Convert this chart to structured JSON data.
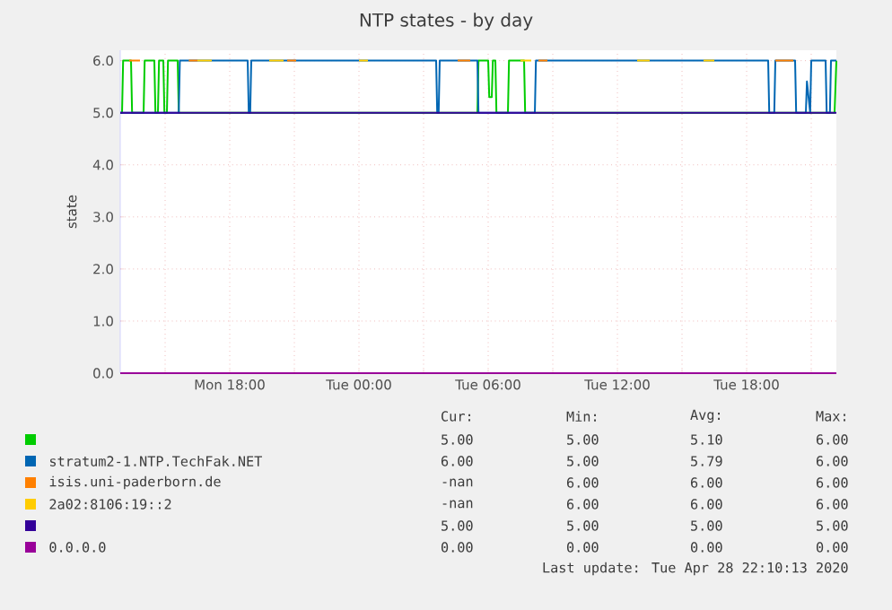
{
  "chart_data": {
    "type": "line",
    "title": "NTP states - by day",
    "ylabel": "state",
    "xlim": [
      "2020-04-27T12:55",
      "2020-04-28T22:10"
    ],
    "ylim": [
      0,
      6.2
    ],
    "xticks": [
      {
        "value": "2020-04-27T15:00",
        "label": null
      },
      {
        "value": "2020-04-27T18:00",
        "label": "Mon 18:00"
      },
      {
        "value": "2020-04-27T21:00",
        "label": null
      },
      {
        "value": "2020-04-28T00:00",
        "label": "Tue 00:00"
      },
      {
        "value": "2020-04-28T03:00",
        "label": null
      },
      {
        "value": "2020-04-28T06:00",
        "label": "Tue 06:00"
      },
      {
        "value": "2020-04-28T09:00",
        "label": null
      },
      {
        "value": "2020-04-28T12:00",
        "label": "Tue 12:00"
      },
      {
        "value": "2020-04-28T15:00",
        "label": null
      },
      {
        "value": "2020-04-28T18:00",
        "label": "Tue 18:00"
      },
      {
        "value": "2020-04-28T21:00",
        "label": null
      }
    ],
    "yticks": [
      {
        "value": 0,
        "label": "0.0"
      },
      {
        "value": 1,
        "label": "1.0"
      },
      {
        "value": 2,
        "label": "2.0"
      },
      {
        "value": 3,
        "label": "3.0"
      },
      {
        "value": 4,
        "label": "4.0"
      },
      {
        "value": 5,
        "label": "5.0"
      },
      {
        "value": 6,
        "label": "6.0"
      }
    ],
    "grid": true,
    "legend": "bottom",
    "series": [
      {
        "color": "#00cc00",
        "x": [
          "2020-04-27T12:55",
          "2020-04-27T13:00",
          "2020-04-27T13:03",
          "2020-04-27T13:25",
          "2020-04-27T13:28",
          "2020-04-27T14:00",
          "2020-04-27T14:03",
          "2020-04-27T14:30",
          "2020-04-27T14:33",
          "2020-04-27T14:40",
          "2020-04-27T14:43",
          "2020-04-27T14:55",
          "2020-04-27T14:58",
          "2020-04-27T15:05",
          "2020-04-27T15:08",
          "2020-04-27T15:35",
          "2020-04-27T15:38",
          "2020-04-28T05:30",
          "2020-04-28T05:33",
          "2020-04-28T06:00",
          "2020-04-28T06:03",
          "2020-04-28T06:10",
          "2020-04-28T06:13",
          "2020-04-28T06:20",
          "2020-04-28T06:23",
          "2020-04-28T06:55",
          "2020-04-28T06:58",
          "2020-04-28T07:40",
          "2020-04-28T07:43",
          "2020-04-28T22:05",
          "2020-04-28T22:10"
        ],
        "values": [
          5,
          5,
          6,
          6,
          5,
          5,
          6,
          6,
          5,
          5,
          6,
          6,
          5,
          5,
          6,
          6,
          5,
          5,
          6,
          6,
          5.3,
          5.3,
          6,
          6,
          5,
          5,
          6,
          6,
          5,
          5,
          6
        ]
      },
      {
        "name": "stratum2-1.NTP.TechFak.NET",
        "color": "#0066b3",
        "x": [
          "2020-04-27T12:55",
          "2020-04-27T15:38",
          "2020-04-27T15:41",
          "2020-04-27T18:50",
          "2020-04-27T18:53",
          "2020-04-27T18:57",
          "2020-04-27T19:00",
          "2020-04-28T03:35",
          "2020-04-28T03:38",
          "2020-04-28T03:42",
          "2020-04-28T03:45",
          "2020-04-28T05:30",
          "2020-04-28T05:33",
          "2020-04-28T08:10",
          "2020-04-28T08:13",
          "2020-04-28T19:00",
          "2020-04-28T19:03",
          "2020-04-28T19:17",
          "2020-04-28T19:20",
          "2020-04-28T20:15",
          "2020-04-28T20:18",
          "2020-04-28T20:45",
          "2020-04-28T20:48",
          "2020-04-28T20:57",
          "2020-04-28T21:00",
          "2020-04-28T21:40",
          "2020-04-28T21:43",
          "2020-04-28T21:52",
          "2020-04-28T21:55",
          "2020-04-28T22:10"
        ],
        "values": [
          5,
          5,
          6,
          6,
          5,
          5,
          6,
          6,
          5,
          5,
          6,
          6,
          5,
          5,
          6,
          6,
          5,
          5,
          6,
          6,
          5,
          5,
          5.6,
          5,
          6,
          6,
          5,
          5,
          6,
          6
        ]
      },
      {
        "name": "isis.uni-paderborn.de",
        "color": "#ff8000",
        "x": [
          "2020-04-27T13:20",
          "2020-04-27T13:50",
          "2020-04-27T14:00",
          "2020-04-27T16:06",
          "2020-04-27T16:30",
          "2020-04-27T16:36",
          "2020-04-27T20:40",
          "2020-04-27T21:05",
          "2020-04-27T21:12",
          "2020-04-28T04:35",
          "2020-04-28T05:10",
          "2020-04-28T05:18",
          "2020-04-28T08:20",
          "2020-04-28T08:45",
          "2020-04-28T08:54",
          "2020-04-28T19:20",
          "2020-04-28T20:10"
        ],
        "values": [
          6,
          6,
          null,
          6,
          6,
          null,
          6,
          6,
          null,
          6,
          6,
          null,
          6,
          6,
          null,
          6,
          6
        ]
      },
      {
        "name": "2a02:8106:19::2",
        "color": "#ffcc00",
        "x": [
          "2020-04-27T16:30",
          "2020-04-27T17:10",
          "2020-04-27T17:18",
          "2020-04-27T19:50",
          "2020-04-27T20:30",
          "2020-04-27T20:36",
          "2020-04-28T00:00",
          "2020-04-28T00:25",
          "2020-04-28T00:30",
          "2020-04-28T07:30",
          "2020-04-28T08:00",
          "2020-04-28T08:06",
          "2020-04-28T12:55",
          "2020-04-28T13:30",
          "2020-04-28T13:36",
          "2020-04-28T16:00",
          "2020-04-28T16:30"
        ],
        "values": [
          6,
          6,
          null,
          6,
          6,
          null,
          6,
          6,
          null,
          6,
          6,
          null,
          6,
          6,
          null,
          6,
          6
        ]
      },
      {
        "color": "#330099",
        "x": [
          "2020-04-27T12:55",
          "2020-04-28T22:10"
        ],
        "values": [
          5,
          5
        ]
      },
      {
        "name": "0.0.0.0",
        "color": "#990099",
        "x": [
          "2020-04-27T12:55",
          "2020-04-28T22:10"
        ],
        "values": [
          0,
          0
        ]
      }
    ],
    "annotations": [
      "Cur:",
      "Min:",
      "Avg:",
      "Max:",
      "5.00",
      "5.00",
      "5.10",
      "6.00",
      "6.00",
      "5.00",
      "5.79",
      "6.00",
      "-nan",
      "6.00",
      "6.00",
      "6.00",
      "-nan",
      "6.00",
      "6.00",
      "6.00",
      "5.00",
      "5.00",
      "5.00",
      "5.00",
      "0.00",
      "0.00",
      "0.00",
      "0.00",
      "Last update: Tue Apr 28 22:10:13 2020"
    ]
  }
}
